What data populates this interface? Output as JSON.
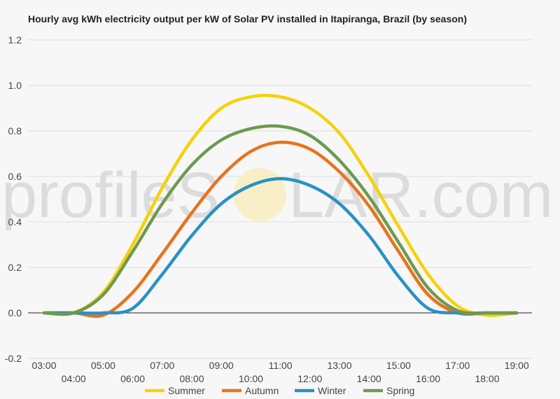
{
  "chart_data": {
    "type": "line",
    "title": "Hourly avg kWh electricity output per kW of Solar PV installed in Itapiranga, Brazil (by season)",
    "xlabel": "",
    "ylabel": "",
    "x": [
      "03:00",
      "04:00",
      "05:00",
      "06:00",
      "07:00",
      "08:00",
      "09:00",
      "10:00",
      "11:00",
      "12:00",
      "13:00",
      "14:00",
      "15:00",
      "16:00",
      "17:00",
      "18:00",
      "19:00"
    ],
    "ylim": [
      -0.2,
      1.2
    ],
    "yticks": [
      "1.2",
      "1.0",
      "0.8",
      "0.6",
      "0.4",
      "0.2",
      "0.0",
      "-0.2"
    ],
    "grid": true,
    "legend": "bottom",
    "series": [
      {
        "name": "Summer",
        "color": "#f5d20a",
        "values": [
          0,
          0,
          0.09,
          0.3,
          0.55,
          0.76,
          0.9,
          0.95,
          0.95,
          0.9,
          0.79,
          0.6,
          0.38,
          0.17,
          0.03,
          -0.01,
          0
        ]
      },
      {
        "name": "Autumn",
        "color": "#e8731e",
        "values": [
          0,
          0,
          -0.01,
          0.09,
          0.26,
          0.44,
          0.6,
          0.71,
          0.75,
          0.72,
          0.62,
          0.47,
          0.27,
          0.08,
          0,
          0,
          0
        ]
      },
      {
        "name": "Winter",
        "color": "#2a91c4",
        "values": [
          0,
          0,
          0,
          0.02,
          0.17,
          0.34,
          0.48,
          0.56,
          0.59,
          0.56,
          0.48,
          0.34,
          0.16,
          0.02,
          0,
          0,
          0
        ]
      },
      {
        "name": "Spring",
        "color": "#6d9a50",
        "values": [
          0,
          0,
          0.08,
          0.27,
          0.48,
          0.65,
          0.76,
          0.81,
          0.82,
          0.78,
          0.67,
          0.51,
          0.31,
          0.11,
          0.01,
          0,
          0
        ]
      }
    ]
  },
  "watermark": {
    "left": "profileS",
    "right": "LAR.com"
  }
}
